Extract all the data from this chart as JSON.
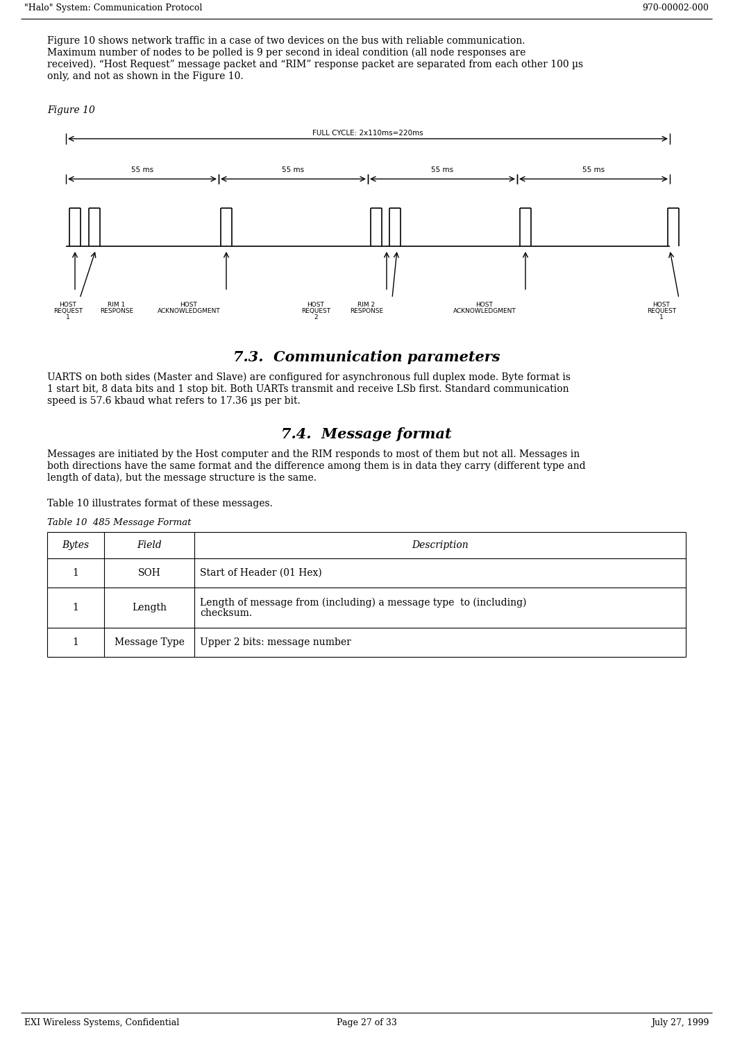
{
  "header_left": "\"Halo\" System: Communication Protocol",
  "header_right": "970-00002-000",
  "footer_left": "EXI Wireless Systems, Confidential",
  "footer_center": "Page 27 of 33",
  "footer_right": "July 27, 1999",
  "body_text_1": "Figure 10 shows network traffic in a case of two devices on the bus with reliable communication.\nMaximum number of nodes to be polled is 9 per second in ideal condition (all node responses are\nreceived). “Host Request” message packet and “RIM” response packet are separated from each other 100 µs\nonly, and not as shown in the Figure 10.",
  "figure_label": "Figure 10",
  "full_cycle_label": "FULL CYCLE: 2x110ms=220ms",
  "segment_labels": [
    "55 ms",
    "55 ms",
    "55 ms",
    "55 ms"
  ],
  "section_73_title": "7.3.  Communication parameters",
  "section_73_text": "UARTS on both sides (Master and Slave) are configured for asynchronous full duplex mode. Byte format is\n1 start bit, 8 data bits and 1 stop bit. Both UARTs transmit and receive LSb first. Standard communication\nspeed is 57.6 kbaud what refers to 17.36 µs per bit.",
  "section_74_title": "7.4.  Message format",
  "section_74_text": "Messages are initiated by the Host computer and the RIM responds to most of them but not all. Messages in\nboth directions have the same format and the difference among them is in data they carry (different type and\nlength of data), but the message structure is the same.",
  "table_intro": "Table 10 illustrates format of these messages.",
  "table_caption": "Table 10  485 Message Format",
  "table_headers": [
    "Bytes",
    "Field",
    "Description"
  ],
  "table_rows": [
    [
      "1",
      "SOH",
      "Start of Header (01 Hex)"
    ],
    [
      "1",
      "Length",
      "Length of message from (including) a message type  to (including)\nchecksum."
    ],
    [
      "1",
      "Message Type",
      "Upper 2 bits: message number"
    ]
  ],
  "bg_color": "#ffffff",
  "text_color": "#000000"
}
